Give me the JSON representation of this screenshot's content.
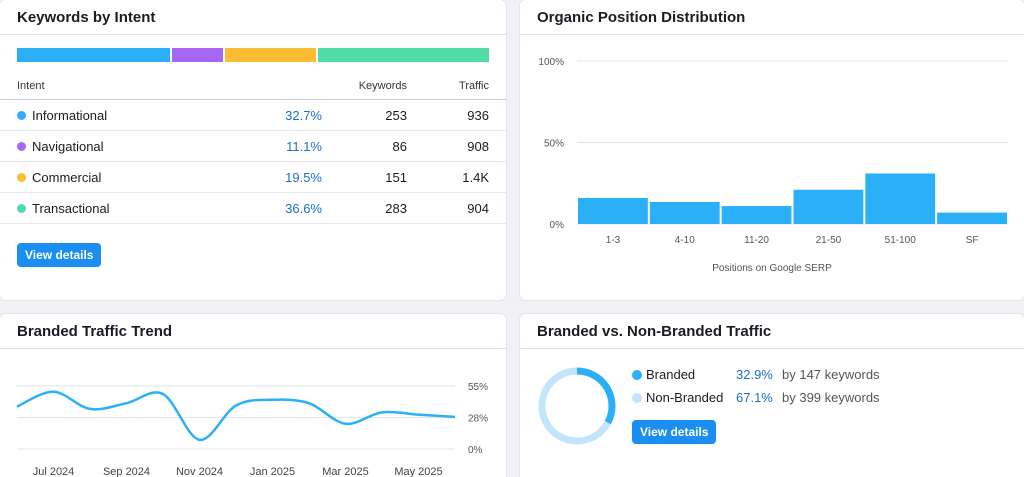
{
  "intent": {
    "title": "Keywords by Intent",
    "columns": {
      "intent": "Intent",
      "keywords": "Keywords",
      "traffic": "Traffic"
    },
    "rows": [
      {
        "name": "Informational",
        "percent": "32.7%",
        "keywords": "253",
        "traffic": "936",
        "color": "#2bb0f7"
      },
      {
        "name": "Navigational",
        "percent": "11.1%",
        "keywords": "86",
        "traffic": "908",
        "color": "#a568f2"
      },
      {
        "name": "Commercial",
        "percent": "19.5%",
        "keywords": "151",
        "traffic": "1.4K",
        "color": "#fbbd32"
      },
      {
        "name": "Transactional",
        "percent": "36.6%",
        "keywords": "283",
        "traffic": "904",
        "color": "#52dca5"
      }
    ],
    "bar_shares": [
      32.7,
      11.1,
      19.5,
      36.6
    ],
    "button": "View details"
  },
  "position": {
    "title": "Organic Position Distribution",
    "chart_data": {
      "type": "bar",
      "categories": [
        "1-3",
        "4-10",
        "11-20",
        "21-50",
        "51-100",
        "SF"
      ],
      "values": [
        16,
        13.5,
        11,
        21,
        31,
        7
      ],
      "ylim": [
        0,
        100
      ],
      "yticks": [
        "100%",
        "50%",
        "0%"
      ],
      "xlabel": "Positions on Google SERP",
      "color": "#2bb0f7"
    }
  },
  "trend": {
    "title": "Branded Traffic Trend",
    "chart_data": {
      "type": "line",
      "x": [
        "Jun 2024",
        "Jul 2024",
        "Aug 2024",
        "Sep 2024",
        "Oct 2024",
        "Nov 2024",
        "Dec 2024",
        "Jan 2025",
        "Feb 2025",
        "Mar 2025",
        "Apr 2025",
        "May 2025",
        "Jun 2025"
      ],
      "values": [
        37,
        50,
        35,
        40,
        48,
        8,
        38,
        43,
        40,
        22,
        32,
        30,
        28
      ],
      "ylim": [
        0,
        55
      ],
      "yticks": [
        "55%",
        "28%",
        "0%"
      ],
      "xticks": [
        "Jul 2024",
        "Sep 2024",
        "Nov 2024",
        "Jan 2025",
        "Mar 2025",
        "May 2025"
      ],
      "color": "#2bb0f7"
    }
  },
  "branded": {
    "title": "Branded vs. Non-Branded Traffic",
    "chart_data": {
      "type": "pie",
      "categories": [
        "Branded",
        "Non-Branded"
      ],
      "values": [
        32.9,
        67.1
      ],
      "colors": [
        "#2bb0f7",
        "#c3e5fc"
      ]
    },
    "items": [
      {
        "label": "Branded",
        "percent": "32.9%",
        "keywords": "by 147 keywords",
        "color": "#2bb0f7"
      },
      {
        "label": "Non-Branded",
        "percent": "67.1%",
        "keywords": "by 399 keywords",
        "color": "#c3e5fc"
      }
    ],
    "button": "View details"
  }
}
